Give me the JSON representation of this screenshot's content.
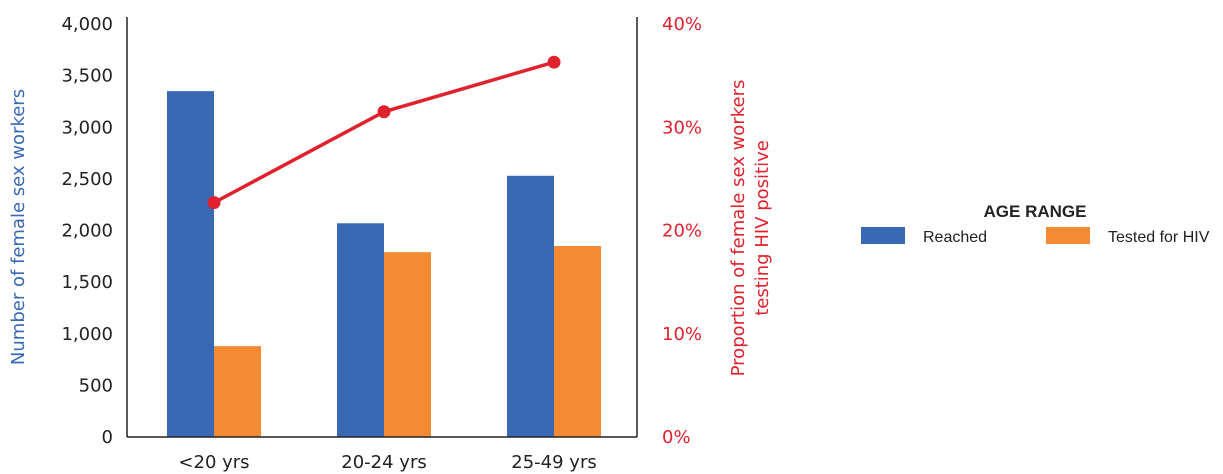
{
  "chart_data": {
    "type": "bar",
    "categories": [
      "<20 yrs",
      "20-24 yrs",
      "25-49 yrs"
    ],
    "series": [
      {
        "name": "Reached",
        "values": [
          3350,
          2070,
          2530
        ],
        "color": "#3A69B4"
      },
      {
        "name": "Tested for HIV",
        "values": [
          880,
          1790,
          1850
        ],
        "color": "#F48A34"
      }
    ],
    "line_series": {
      "values": [
        22.7,
        31.5,
        36.3
      ],
      "color": "#E0222E"
    },
    "ylabel": "Number of female sex workers",
    "ylabel_color": "#3A69B4",
    "ylim": [
      0,
      4000
    ],
    "yticks": [
      "0",
      "500",
      "1,000",
      "1,500",
      "2,000",
      "2,500",
      "3,000",
      "3,500",
      "4,000"
    ],
    "y2label_lines": [
      "Proportion of female sex workers",
      "testing HIV positive"
    ],
    "y2label_color": "#E0222E",
    "y2lim": [
      0,
      40
    ],
    "y2ticks": [
      "0%",
      "10%",
      "20%",
      "30%",
      "40%"
    ],
    "legend_title": "AGE RANGE",
    "legend_placement": "right",
    "grid": false
  }
}
